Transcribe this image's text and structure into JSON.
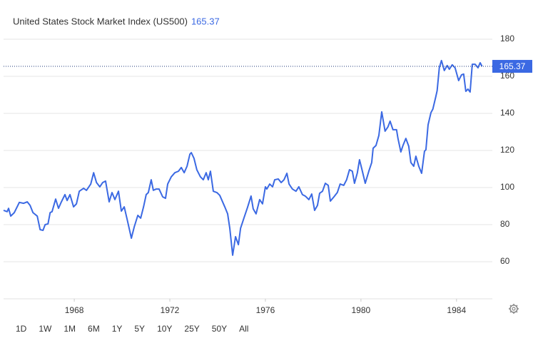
{
  "chart_data": {
    "type": "line",
    "title": "United States Stock Market Index (US500)",
    "color": "#3b69e3",
    "grid": true,
    "xlim": [
      1965.04,
      1985.5
    ],
    "ylim": [
      40,
      200
    ],
    "xticks": [
      1968,
      1972,
      1976,
      1980,
      1984
    ],
    "yticks": [
      60,
      80,
      100,
      120,
      140,
      160,
      180
    ],
    "range_buttons": [
      "1D",
      "1W",
      "1M",
      "6M",
      "1Y",
      "5Y",
      "10Y",
      "25Y",
      "50Y",
      "All"
    ],
    "x": [
      1965.04,
      1965.19,
      1965.25,
      1965.34,
      1965.49,
      1965.7,
      1965.88,
      1966.03,
      1966.15,
      1966.27,
      1966.45,
      1966.57,
      1966.69,
      1966.78,
      1966.9,
      1966.99,
      1967.07,
      1967.22,
      1967.34,
      1967.46,
      1967.61,
      1967.7,
      1967.82,
      1967.97,
      1968.09,
      1968.21,
      1968.39,
      1968.51,
      1968.69,
      1968.81,
      1968.93,
      1969.07,
      1969.19,
      1969.31,
      1969.46,
      1969.58,
      1969.7,
      1969.85,
      1969.97,
      1970.09,
      1970.21,
      1970.39,
      1970.51,
      1970.66,
      1970.78,
      1970.9,
      1971.01,
      1971.1,
      1971.22,
      1971.31,
      1971.43,
      1971.55,
      1971.7,
      1971.82,
      1971.91,
      1972.06,
      1972.21,
      1972.36,
      1972.48,
      1972.6,
      1972.72,
      1972.84,
      1972.9,
      1973.01,
      1973.13,
      1973.28,
      1973.4,
      1973.52,
      1973.61,
      1973.7,
      1973.82,
      1973.97,
      1974.09,
      1974.3,
      1974.42,
      1974.51,
      1974.63,
      1974.75,
      1974.87,
      1974.96,
      1975.1,
      1975.25,
      1975.4,
      1975.49,
      1975.61,
      1975.76,
      1975.88,
      1976.0,
      1976.06,
      1976.18,
      1976.3,
      1976.39,
      1976.54,
      1976.66,
      1976.78,
      1976.9,
      1976.99,
      1977.13,
      1977.28,
      1977.4,
      1977.55,
      1977.67,
      1977.82,
      1977.94,
      1978.06,
      1978.18,
      1978.27,
      1978.39,
      1978.51,
      1978.63,
      1978.72,
      1978.87,
      1979.01,
      1979.13,
      1979.28,
      1979.4,
      1979.52,
      1979.64,
      1979.73,
      1979.85,
      1979.94,
      1980.03,
      1980.18,
      1980.33,
      1980.45,
      1980.51,
      1980.63,
      1980.75,
      1980.87,
      1981.01,
      1981.13,
      1981.22,
      1981.34,
      1981.49,
      1981.55,
      1981.67,
      1981.76,
      1981.88,
      1982.0,
      1982.09,
      1982.21,
      1982.3,
      1982.42,
      1982.54,
      1982.66,
      1982.72,
      1982.81,
      1982.93,
      1983.01,
      1983.13,
      1983.19,
      1983.28,
      1983.37,
      1983.49,
      1983.61,
      1983.7,
      1983.82,
      1983.94,
      1984.09,
      1984.21,
      1984.3,
      1984.39,
      1984.48,
      1984.57,
      1984.66,
      1984.78,
      1984.9,
      1984.99,
      1985.07
    ],
    "values": [
      87.7,
      87,
      88.8,
      84.6,
      86.5,
      92,
      91.5,
      92.3,
      90.4,
      86.5,
      84.6,
      77.3,
      76.9,
      80,
      80.4,
      86.5,
      87,
      93.8,
      88.8,
      92.3,
      96.2,
      93,
      96.2,
      89.6,
      91.2,
      98,
      99.6,
      98.5,
      101.9,
      108,
      102.7,
      100.4,
      102.7,
      103.5,
      92.3,
      97.3,
      93.5,
      98,
      87.3,
      89.6,
      83,
      72.7,
      78.8,
      85,
      83.5,
      89.6,
      96.2,
      97.3,
      104.2,
      98.5,
      99.2,
      99.2,
      95,
      94.2,
      101.9,
      105.8,
      108,
      108.8,
      110.8,
      108,
      111.5,
      118,
      118.8,
      115.8,
      109.6,
      105.8,
      104.2,
      108,
      104.2,
      108.8,
      98,
      97.3,
      95.8,
      89.6,
      85.8,
      78,
      63.5,
      73.5,
      69.2,
      78,
      83.5,
      89.2,
      95.4,
      88.5,
      85.8,
      93.5,
      91.2,
      100.4,
      99.2,
      101.9,
      100.4,
      104.2,
      104.6,
      102.7,
      104.2,
      107.7,
      101.9,
      99.2,
      98,
      100.4,
      96.2,
      95.4,
      93.5,
      96.5,
      87.7,
      90.4,
      96.9,
      98,
      102.3,
      101.2,
      92.7,
      95,
      97.3,
      101.9,
      101.2,
      104.2,
      109.6,
      108.8,
      102.3,
      108,
      115,
      110.4,
      102.3,
      108.8,
      113.5,
      121.2,
      122.7,
      128.1,
      140.8,
      130.4,
      132.7,
      135.8,
      131.2,
      131.2,
      126.5,
      119.2,
      122.7,
      126.5,
      122.3,
      113.5,
      111.5,
      116.9,
      111.5,
      107.7,
      119.6,
      120.4,
      133.8,
      140.4,
      142.3,
      148.8,
      152.3,
      164.6,
      168.5,
      163.1,
      165.8,
      163.8,
      166.2,
      164.6,
      157.7,
      160.8,
      161.2,
      151.9,
      153.1,
      151.5,
      166.5,
      166.5,
      164.6,
      167.3,
      165.37
    ]
  }
}
